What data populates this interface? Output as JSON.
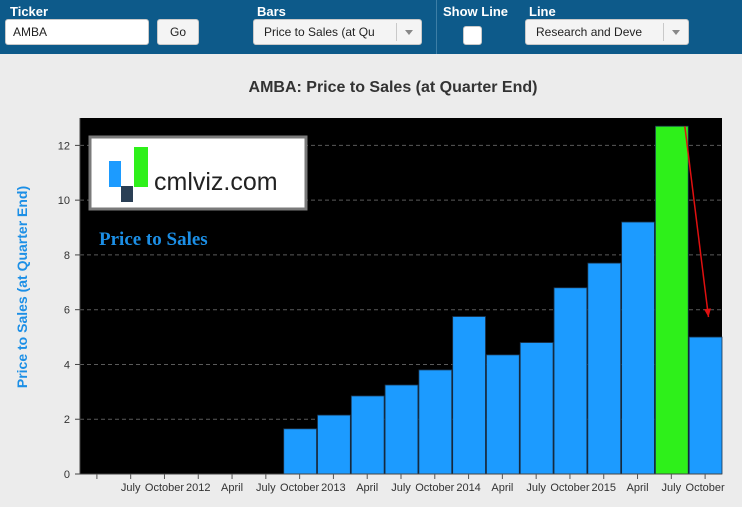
{
  "toolbar": {
    "ticker_label": "Ticker",
    "ticker_value": "AMBA",
    "go_label": "Go",
    "bars_label": "Bars",
    "bars_value": "Price to Sales (at Qu",
    "show_line_label": "Show Line",
    "line_label": "Line",
    "line_value": "Research and Deve"
  },
  "logo": {
    "text": "cmlviz.com"
  },
  "colors": {
    "accent": "#0d5a8a",
    "bar": "#1c9bff",
    "highlight": "#2ef01a",
    "arrow": "#e01010",
    "label_blue": "#1c8fe6"
  },
  "chart_data": {
    "type": "bar",
    "title": "AMBA: Price to Sales (at Quarter End)",
    "overlay_text": "Price to Sales",
    "ylabel": "Price to Sales (at Quarter End)",
    "xlabel": "",
    "ylim": [
      0,
      13
    ],
    "yticks": [
      0,
      2,
      4,
      6,
      8,
      10,
      12
    ],
    "grid": "horizontal-dashed",
    "categories": [
      "",
      "July",
      "October",
      "2012",
      "April",
      "July",
      "October",
      "2013",
      "April",
      "July",
      "October",
      "2014",
      "April",
      "July",
      "October",
      "2015",
      "April",
      "July",
      "October"
    ],
    "values": [
      0,
      0,
      0,
      0,
      0,
      0,
      1.65,
      2.15,
      2.85,
      3.25,
      3.8,
      5.75,
      4.35,
      4.8,
      6.8,
      7.7,
      9.2,
      12.7,
      5.0
    ],
    "highlight_index": 17,
    "arrow": {
      "from": 17,
      "to": 18
    }
  }
}
